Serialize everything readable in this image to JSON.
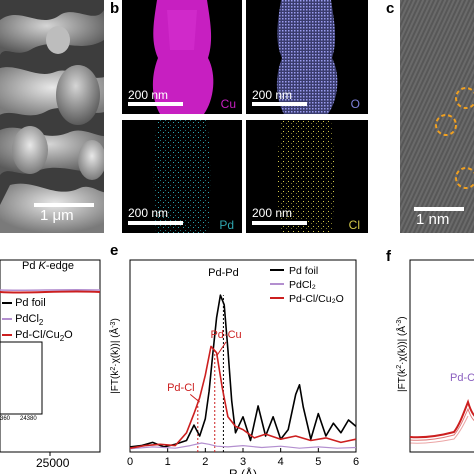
{
  "figure": {
    "panel_labels": [
      "b",
      "c",
      "e",
      "f"
    ]
  },
  "panel_a": {
    "scale_label": "1 μm"
  },
  "panel_b": {
    "maps": [
      {
        "element": "Cu",
        "scale_label": "200 nm",
        "color": "#c71fc1"
      },
      {
        "element": "O",
        "scale_label": "200 nm",
        "color": "#7d7fd8"
      },
      {
        "element": "Pd",
        "scale_label": "200 nm",
        "color": "#2fa6b0"
      },
      {
        "element": "Cl",
        "scale_label": "200 nm",
        "color": "#d2c74a"
      }
    ]
  },
  "panel_c": {
    "scale_label": "1 nm"
  },
  "panel_d": {
    "edge_label_prefix": "Pd ",
    "edge_label_italic": "K",
    "edge_label_suffix": "-edge",
    "legend": [
      {
        "name": "Pd foil",
        "color": "#000000"
      },
      {
        "name": "PdCl",
        "sub": "2",
        "color": "#b38fcf"
      },
      {
        "name": "Pd-Cl/Cu",
        "sub": "2",
        "suffix": "O",
        "color": "#cc1f1f"
      }
    ],
    "inset_ticks": [
      "360",
      "24380"
    ],
    "x_tick": "25000"
  },
  "chart_data": {
    "type": "line",
    "panel": "e",
    "xlabel": "R (Å)",
    "ylabel_parts": [
      "|FT(k",
      "2",
      "·χ(k))| (Å",
      "-3",
      ")"
    ],
    "xlim": [
      0,
      6
    ],
    "ylim": [
      0,
      3.0
    ],
    "x_ticks": [
      0,
      1,
      2,
      3,
      4,
      5,
      6
    ],
    "legend_position": "top-right",
    "series": [
      {
        "name": "Pd foil",
        "color": "#000000",
        "x": [
          0,
          0.3,
          0.6,
          0.9,
          1.2,
          1.5,
          1.7,
          1.85,
          2.0,
          2.1,
          2.2,
          2.3,
          2.4,
          2.5,
          2.6,
          2.7,
          2.8,
          3.0,
          3.2,
          3.4,
          3.6,
          3.8,
          4.0,
          4.2,
          4.4,
          4.5,
          4.6,
          4.8,
          5.0,
          5.2,
          5.4,
          5.6,
          5.8,
          6.0
        ],
        "y": [
          0.08,
          0.1,
          0.15,
          0.08,
          0.12,
          0.18,
          0.42,
          0.25,
          0.52,
          0.95,
          1.55,
          2.1,
          2.45,
          2.3,
          1.6,
          0.8,
          0.3,
          0.55,
          0.18,
          0.72,
          0.25,
          0.55,
          0.2,
          0.35,
          0.9,
          1.05,
          0.7,
          0.2,
          0.6,
          0.25,
          0.45,
          0.3,
          0.5,
          0.4
        ]
      },
      {
        "name": "PdCl₂",
        "color": "#b38fcf",
        "x": [
          0,
          0.6,
          1.2,
          1.6,
          1.9,
          2.1,
          2.3,
          2.6,
          3.0,
          3.5,
          4.0,
          4.5,
          5.0,
          5.5,
          6.0
        ],
        "y": [
          0.05,
          0.08,
          0.06,
          0.1,
          0.14,
          0.12,
          0.09,
          0.08,
          0.1,
          0.07,
          0.09,
          0.06,
          0.08,
          0.06,
          0.07
        ]
      },
      {
        "name": "Pd-Cl/Cu₂O",
        "color": "#cc1f1f",
        "x": [
          0,
          0.4,
          0.8,
          1.2,
          1.5,
          1.7,
          1.85,
          2.0,
          2.15,
          2.3,
          2.45,
          2.6,
          2.8,
          3.0,
          3.3,
          3.6,
          4.0,
          4.4,
          4.8,
          5.2,
          5.6,
          6.0
        ],
        "y": [
          0.06,
          0.1,
          0.12,
          0.1,
          0.3,
          0.6,
          0.85,
          1.2,
          1.65,
          1.55,
          1.0,
          0.55,
          0.4,
          0.35,
          0.22,
          0.28,
          0.2,
          0.25,
          0.18,
          0.22,
          0.15,
          0.2
        ]
      }
    ],
    "annotations": [
      {
        "text": "Pd-Pd",
        "color": "#000000",
        "x": 2.48,
        "y": 2.75,
        "line_x": 2.48,
        "line_y0": 0.0,
        "line_y1": 2.45
      },
      {
        "text": "Pd-Cu",
        "color": "#cc1f1f",
        "x": 2.55,
        "y": 1.78,
        "line_x": 2.25,
        "line_y0": 0.0,
        "line_y1": 1.6
      },
      {
        "text": "Pd-Cl",
        "color": "#cc1f1f",
        "x": 1.35,
        "y": 0.95,
        "line_x": 1.8,
        "line_y0": 0.0,
        "line_y1": 0.82
      }
    ]
  },
  "panel_f": {
    "ylabel_parts": [
      "|FT(k",
      "2",
      "·χ(k))| (Å",
      "-3",
      ")"
    ],
    "annotation": "Pd-C"
  }
}
